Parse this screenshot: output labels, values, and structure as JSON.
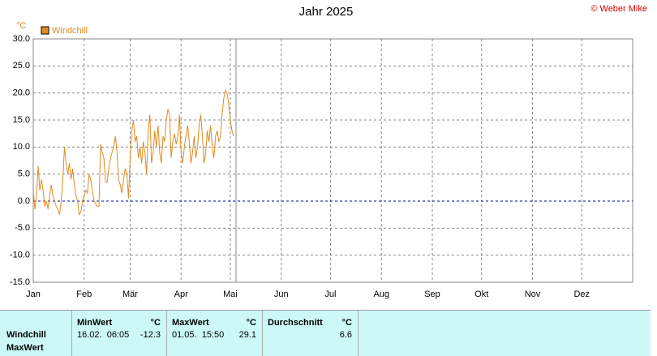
{
  "chart_data": {
    "type": "line",
    "title": "Jahr 2025",
    "copyright": "© Weber Mike",
    "y_unit": "°C",
    "ylim": [
      -15,
      30
    ],
    "yticks": [
      {
        "value": 30,
        "label": "30.0"
      },
      {
        "value": 25,
        "label": "25.0"
      },
      {
        "value": 20,
        "label": "20.0"
      },
      {
        "value": 15,
        "label": "15.0"
      },
      {
        "value": 10,
        "label": "10.0"
      },
      {
        "value": 5,
        "label": "5.0"
      },
      {
        "value": 0,
        "label": "0.0"
      },
      {
        "value": -5,
        "label": "-5.0"
      },
      {
        "value": -10,
        "label": "-10.0"
      },
      {
        "value": -15,
        "label": "-15.0"
      }
    ],
    "xlim": [
      1,
      366
    ],
    "xticks": [
      {
        "value": 1,
        "label": "Jan"
      },
      {
        "value": 32,
        "label": "Feb"
      },
      {
        "value": 60,
        "label": "Mär"
      },
      {
        "value": 91,
        "label": "Apr"
      },
      {
        "value": 121,
        "label": "Mai"
      },
      {
        "value": 152,
        "label": "Jun"
      },
      {
        "value": 182,
        "label": "Jul"
      },
      {
        "value": 213,
        "label": "Aug"
      },
      {
        "value": 244,
        "label": "Sep"
      },
      {
        "value": 274,
        "label": "Okt"
      },
      {
        "value": 305,
        "label": "Nov"
      },
      {
        "value": 335,
        "label": "Dez"
      }
    ],
    "grid": true,
    "series": [
      {
        "name": "Windchill",
        "color": "#e08a20",
        "values": [
          2,
          -1.5,
          1,
          6.5,
          2,
          4,
          2,
          -1,
          0,
          -1.5,
          1,
          3,
          1,
          0,
          -1,
          -1.5,
          -2.5,
          0,
          4,
          10,
          7,
          5,
          7,
          4,
          6,
          3,
          1,
          0,
          -2.5,
          -2,
          0,
          1,
          2,
          1.5,
          5,
          4,
          2,
          0,
          -0.5,
          -1,
          -1,
          10.5,
          9,
          8,
          3.5,
          3.5,
          6,
          8,
          9,
          10,
          12,
          9,
          4,
          3,
          1.5,
          4,
          6,
          5,
          0.5,
          8,
          13,
          15,
          11,
          12,
          8,
          10,
          7,
          11,
          9,
          5,
          13,
          16,
          7,
          9,
          13,
          10,
          14,
          9,
          7,
          12,
          11,
          15,
          17,
          16,
          8,
          11,
          12.5,
          10.5,
          12,
          16,
          9,
          7,
          10,
          12,
          14,
          11,
          7,
          9,
          12,
          8,
          10,
          14,
          16,
          12,
          7,
          9,
          13,
          11,
          14,
          10,
          8,
          12,
          13,
          11,
          12,
          16,
          19,
          20.5,
          20,
          18,
          15,
          13,
          12
        ]
      }
    ]
  },
  "table": {
    "header": [
      "MinWert",
      "°C",
      "MaxWert",
      "°C",
      "Durchschnitt",
      "°C"
    ],
    "rows": [
      [
        "Windchill",
        "16.02.  06:05",
        "-12.3",
        "01.05.  15:50",
        "29.1",
        "6.6"
      ],
      [
        "MaxWert"
      ]
    ]
  }
}
